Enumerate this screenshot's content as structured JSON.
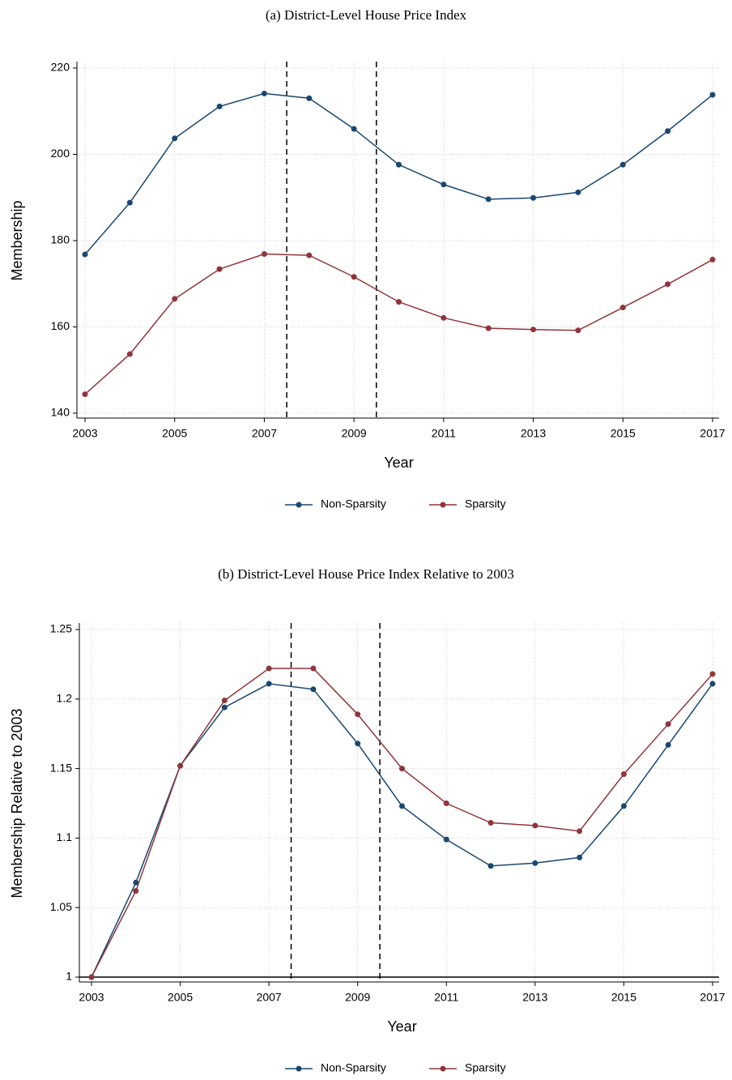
{
  "chart_data": [
    {
      "type": "line",
      "title": "(a) District-Level House Price Index",
      "x_label": "Year",
      "y_label": "Membership",
      "x": [
        2003,
        2004,
        2005,
        2006,
        2007,
        2008,
        2009,
        2010,
        2011,
        2012,
        2013,
        2014,
        2015,
        2016,
        2017
      ],
      "series": [
        {
          "name": "Non-Sparsity",
          "color": "#1a476f",
          "values": [
            176.8,
            188.8,
            203.7,
            211.1,
            214.1,
            213.0,
            205.9,
            197.6,
            193.0,
            189.6,
            189.9,
            191.2,
            197.6,
            205.4,
            213.8
          ]
        },
        {
          "name": "Sparsity",
          "color": "#90353b",
          "values": [
            144.4,
            153.7,
            166.5,
            173.4,
            176.9,
            176.6,
            171.6,
            165.8,
            162.1,
            159.7,
            159.4,
            159.2,
            164.5,
            169.9,
            175.6
          ]
        }
      ],
      "xlim": [
        2003,
        2017
      ],
      "xticks": [
        2003,
        2005,
        2007,
        2009,
        2011,
        2013,
        2015,
        2017
      ],
      "ylim": [
        140,
        220
      ],
      "yticks": [
        140,
        160,
        180,
        200,
        220
      ],
      "grid": true,
      "legend": "bottom",
      "vlines": [
        2007.5,
        2009.5
      ]
    },
    {
      "type": "line",
      "title": "(b) District-Level House Price Index Relative to 2003",
      "x_label": "Year",
      "y_label": "Membership Relative to 2003",
      "x": [
        2003,
        2004,
        2005,
        2006,
        2007,
        2008,
        2009,
        2010,
        2011,
        2012,
        2013,
        2014,
        2015,
        2016,
        2017
      ],
      "series": [
        {
          "name": "Non-Sparsity",
          "color": "#1a476f",
          "values": [
            1.0,
            1.068,
            1.152,
            1.194,
            1.211,
            1.207,
            1.168,
            1.123,
            1.099,
            1.08,
            1.082,
            1.086,
            1.123,
            1.167,
            1.211
          ]
        },
        {
          "name": "Sparsity",
          "color": "#90353b",
          "values": [
            1.0,
            1.062,
            1.152,
            1.199,
            1.222,
            1.222,
            1.189,
            1.15,
            1.125,
            1.111,
            1.109,
            1.105,
            1.146,
            1.182,
            1.218
          ]
        }
      ],
      "xlim": [
        2003,
        2017
      ],
      "xticks": [
        2003,
        2005,
        2007,
        2009,
        2011,
        2013,
        2015,
        2017
      ],
      "ylim": [
        1,
        1.25
      ],
      "yticks": [
        1,
        1.05,
        1.1,
        1.15,
        1.2,
        1.25
      ],
      "grid": true,
      "legend": "bottom",
      "vlines": [
        2007.5,
        2009.5
      ],
      "hline": 1
    }
  ]
}
